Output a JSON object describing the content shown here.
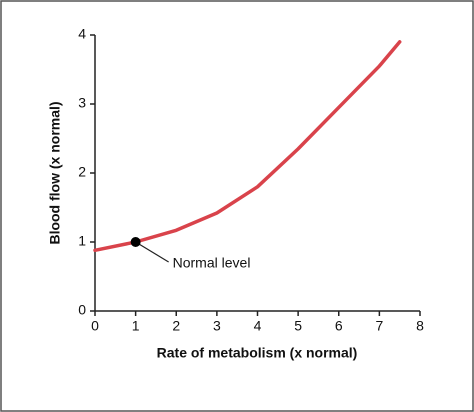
{
  "chart_data": {
    "type": "line",
    "x_label": "Rate of metabolism (x normal)",
    "y_label": "Blood flow (x normal)",
    "x": [
      0,
      1,
      2,
      3,
      4,
      5,
      6,
      7,
      7.5
    ],
    "series": [
      {
        "color": "#d9434b",
        "values": [
          0.88,
          1.0,
          1.17,
          1.42,
          1.8,
          2.35,
          2.95,
          3.55,
          3.9
        ]
      }
    ],
    "xlim": [
      0,
      8
    ],
    "xticks": [
      0,
      1,
      2,
      3,
      4,
      5,
      6,
      7,
      8
    ],
    "ylim": [
      0,
      4
    ],
    "yticks": [
      0,
      1,
      2,
      3,
      4
    ],
    "annotations": [
      {
        "text": "Normal level",
        "x": 1,
        "y": 1
      }
    ]
  }
}
